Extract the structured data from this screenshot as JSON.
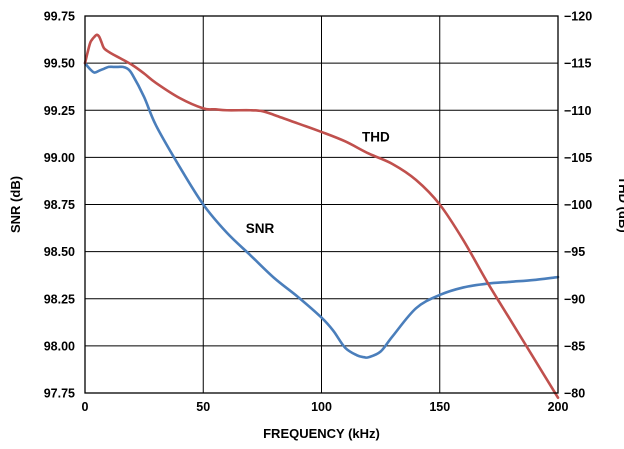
{
  "chart_data": {
    "type": "line",
    "xlabel": "FREQUENCY (kHz)",
    "ylabel_left": "SNR (dB)",
    "ylabel_right": "THD (dB)",
    "xlim": [
      0,
      200
    ],
    "ylim_left": [
      97.75,
      99.75
    ],
    "ylim_right": [
      -80,
      -120
    ],
    "grid": true,
    "x_ticks": [
      "0",
      "50",
      "100",
      "150",
      "200"
    ],
    "y_ticks_left": [
      "97.75",
      "98.00",
      "98.25",
      "98.50",
      "98.75",
      "99.00",
      "99.25",
      "99.50",
      "99.75"
    ],
    "y_ticks_right": [
      "−80",
      "−85",
      "−90",
      "−95",
      "−100",
      "−105",
      "−110",
      "−115",
      "−120"
    ],
    "series": [
      {
        "name": "SNR",
        "axis": "left",
        "color": "#4a7ebb",
        "x": [
          0,
          2,
          4,
          6,
          8,
          10,
          12,
          14,
          16,
          18,
          20,
          25,
          30,
          40,
          50,
          60,
          70,
          80,
          90,
          100,
          105,
          110,
          115,
          118,
          120,
          125,
          130,
          140,
          150,
          160,
          170,
          180,
          190,
          200
        ],
        "y": [
          99.5,
          99.47,
          99.45,
          99.46,
          99.47,
          99.48,
          99.48,
          99.48,
          99.48,
          99.47,
          99.44,
          99.32,
          99.17,
          98.95,
          98.75,
          98.6,
          98.48,
          98.36,
          98.26,
          98.15,
          98.08,
          97.99,
          97.95,
          97.94,
          97.94,
          97.97,
          98.05,
          98.2,
          98.27,
          98.31,
          98.33,
          98.34,
          98.35,
          98.365
        ]
      },
      {
        "name": "THD",
        "axis": "right",
        "color": "#c0504d",
        "x": [
          0,
          2,
          3,
          4,
          5,
          6,
          7,
          8,
          10,
          12,
          15,
          20,
          25,
          30,
          40,
          50,
          55,
          60,
          70,
          75,
          80,
          90,
          100,
          110,
          120,
          130,
          140,
          150,
          160,
          170,
          180,
          190,
          200
        ],
        "y": [
          -115,
          -117,
          -117.5,
          -117.8,
          -118,
          -117.8,
          -117.2,
          -116.6,
          -116.2,
          -115.9,
          -115.5,
          -114.8,
          -113.9,
          -112.9,
          -111.3,
          -110.2,
          -110.1,
          -110,
          -110,
          -109.9,
          -109.5,
          -108.6,
          -107.7,
          -106.7,
          -105.4,
          -104.3,
          -102.6,
          -100,
          -96.2,
          -91.8,
          -87.7,
          -83.6,
          -79.5
        ]
      }
    ],
    "annotations": [
      {
        "text": "SNR",
        "series": "SNR"
      },
      {
        "text": "THD",
        "series": "THD"
      }
    ]
  }
}
